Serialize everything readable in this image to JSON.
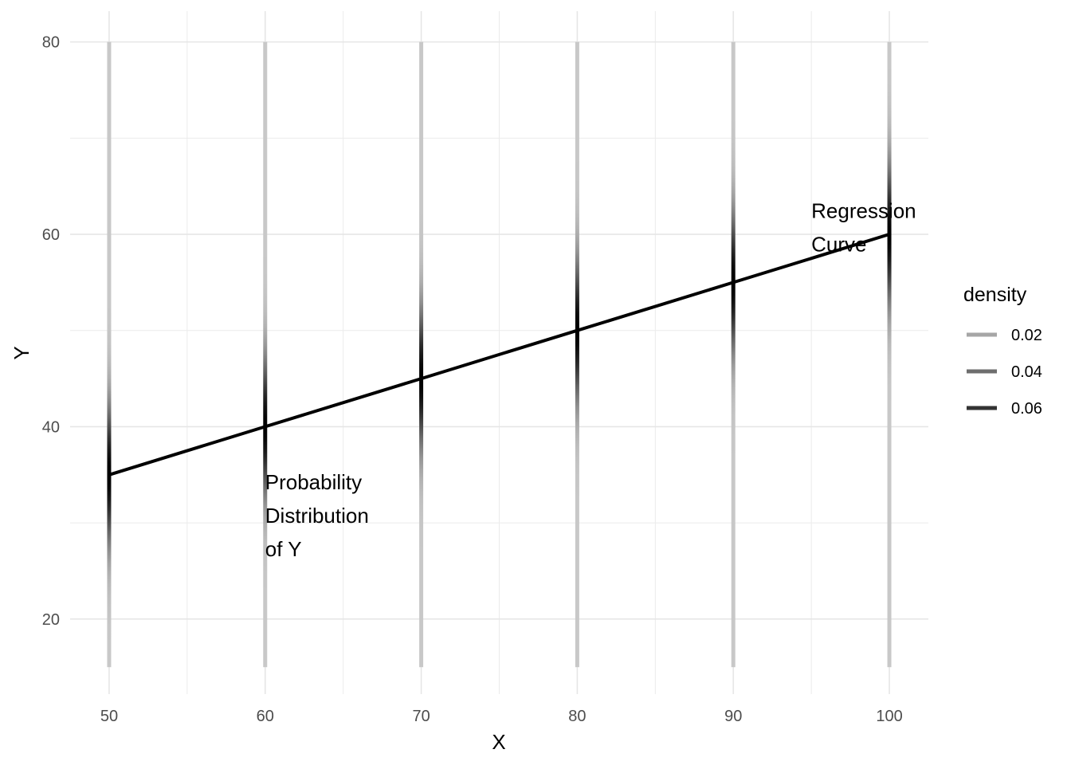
{
  "chart_data": {
    "type": "line",
    "title": "",
    "xlabel": "X",
    "ylabel": "Y",
    "xlim": [
      47.5,
      102.5
    ],
    "ylim": [
      12.2,
      83.2
    ],
    "x_ticks": [
      50,
      60,
      70,
      80,
      90,
      100
    ],
    "x_tick_labels": [
      "50",
      "60",
      "70",
      "80",
      "90",
      "100"
    ],
    "x_minor_ticks": [
      55,
      65,
      75,
      85,
      95
    ],
    "y_ticks": [
      20,
      40,
      60,
      80
    ],
    "y_tick_labels": [
      "20",
      "40",
      "60",
      "80"
    ],
    "y_minor_ticks": [
      30,
      50,
      70
    ],
    "grid": true,
    "series": [
      {
        "kind": "regression-line",
        "color": "#000000",
        "x": [
          50,
          60,
          70,
          80,
          90,
          100
        ],
        "y": [
          35,
          40,
          45,
          50,
          55,
          60
        ]
      }
    ],
    "distributions": {
      "color_scale": "greyscale by density",
      "x": [
        50,
        60,
        70,
        80,
        90,
        100
      ],
      "mean": [
        35,
        40,
        45,
        50,
        55,
        60
      ],
      "sd": 5,
      "y_range": [
        15,
        80
      ]
    },
    "legend": {
      "title": "density",
      "position": "right",
      "entries": [
        {
          "label": "0.02",
          "color": "#a6a6a6"
        },
        {
          "label": "0.04",
          "color": "#6e6e6e"
        },
        {
          "label": "0.06",
          "color": "#333333"
        }
      ]
    },
    "annotations": [
      {
        "lines": [
          "Probability",
          "Distribution",
          "of Y"
        ],
        "x": 60,
        "y": 33.5
      },
      {
        "lines": [
          "Regression",
          "Curve"
        ],
        "x": 95,
        "y": 61.7
      }
    ]
  }
}
